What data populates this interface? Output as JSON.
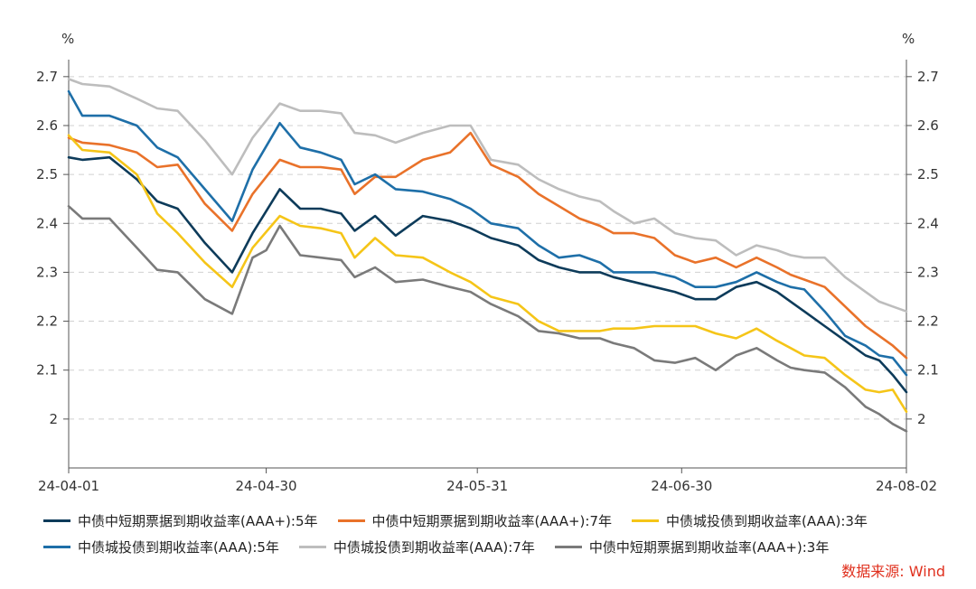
{
  "chart_data": {
    "type": "line",
    "y_unit_left": "%",
    "y_unit_right": "%",
    "ylim": [
      1.9,
      2.72
    ],
    "yticks": [
      2.7,
      2.6,
      2.5,
      2.4,
      2.3,
      2.2,
      2.1,
      2
    ],
    "ytick_labels": [
      "2.7",
      "2.6",
      "2.5",
      "2.4",
      "2.3",
      "2.2",
      "2.1",
      "2"
    ],
    "x_range": [
      0,
      123
    ],
    "xticks": [
      0,
      29,
      60,
      90,
      123
    ],
    "xtick_labels": [
      "24-04-01",
      "24-04-30",
      "24-05-31",
      "24-06-30",
      "24-08-02"
    ],
    "grid": true,
    "legend_position": "bottom",
    "series": [
      {
        "name": "中债中短期票据到期收益率(AAA+):5年",
        "color": "#0d3b5a",
        "x": [
          0,
          2,
          6,
          10,
          13,
          16,
          20,
          24,
          27,
          31,
          34,
          37,
          40,
          42,
          45,
          48,
          52,
          56,
          59,
          62,
          66,
          69,
          72,
          75,
          78,
          80,
          83,
          86,
          89,
          92,
          95,
          98,
          101,
          104,
          106,
          108,
          111,
          114,
          117,
          119,
          121,
          123
        ],
        "y": [
          2.535,
          2.53,
          2.535,
          2.49,
          2.445,
          2.43,
          2.36,
          2.3,
          2.38,
          2.47,
          2.43,
          2.43,
          2.42,
          2.385,
          2.415,
          2.375,
          2.415,
          2.405,
          2.39,
          2.37,
          2.355,
          2.325,
          2.31,
          2.3,
          2.3,
          2.29,
          2.28,
          2.27,
          2.26,
          2.245,
          2.245,
          2.27,
          2.28,
          2.26,
          2.24,
          2.22,
          2.19,
          2.16,
          2.13,
          2.12,
          2.09,
          2.055
        ]
      },
      {
        "name": "中债中短期票据到期收益率(AAA+):7年",
        "color": "#e9722a",
        "x": [
          0,
          2,
          6,
          10,
          13,
          16,
          20,
          24,
          27,
          31,
          34,
          37,
          40,
          42,
          45,
          48,
          52,
          56,
          59,
          62,
          66,
          69,
          72,
          75,
          78,
          80,
          83,
          86,
          89,
          92,
          95,
          98,
          101,
          104,
          106,
          108,
          111,
          114,
          117,
          119,
          121,
          123
        ],
        "y": [
          2.575,
          2.565,
          2.56,
          2.545,
          2.515,
          2.52,
          2.44,
          2.385,
          2.46,
          2.53,
          2.515,
          2.515,
          2.51,
          2.46,
          2.495,
          2.495,
          2.53,
          2.545,
          2.585,
          2.52,
          2.495,
          2.46,
          2.435,
          2.41,
          2.395,
          2.38,
          2.38,
          2.37,
          2.335,
          2.32,
          2.33,
          2.31,
          2.33,
          2.31,
          2.295,
          2.285,
          2.27,
          2.23,
          2.19,
          2.17,
          2.15,
          2.125
        ]
      },
      {
        "name": "中债城投债到期收益率(AAA):3年",
        "color": "#f5c518",
        "x": [
          0,
          2,
          6,
          10,
          13,
          16,
          20,
          24,
          27,
          31,
          34,
          37,
          40,
          42,
          45,
          48,
          52,
          56,
          59,
          62,
          66,
          69,
          72,
          75,
          78,
          80,
          83,
          86,
          89,
          92,
          95,
          98,
          101,
          104,
          106,
          108,
          111,
          114,
          117,
          119,
          121,
          123
        ],
        "y": [
          2.58,
          2.55,
          2.545,
          2.5,
          2.42,
          2.38,
          2.32,
          2.27,
          2.35,
          2.415,
          2.395,
          2.39,
          2.38,
          2.33,
          2.37,
          2.335,
          2.33,
          2.3,
          2.28,
          2.25,
          2.235,
          2.2,
          2.18,
          2.18,
          2.18,
          2.185,
          2.185,
          2.19,
          2.19,
          2.19,
          2.175,
          2.165,
          2.185,
          2.16,
          2.145,
          2.13,
          2.125,
          2.09,
          2.06,
          2.055,
          2.06,
          2.015
        ]
      },
      {
        "name": "中债城投债到期收益率(AAA):5年",
        "color": "#1e6fa8",
        "x": [
          0,
          2,
          6,
          10,
          13,
          16,
          20,
          24,
          27,
          31,
          34,
          37,
          40,
          42,
          45,
          48,
          52,
          56,
          59,
          62,
          66,
          69,
          72,
          75,
          78,
          80,
          83,
          86,
          89,
          92,
          95,
          98,
          101,
          104,
          106,
          108,
          111,
          114,
          117,
          119,
          121,
          123
        ],
        "y": [
          2.67,
          2.62,
          2.62,
          2.6,
          2.555,
          2.535,
          2.47,
          2.405,
          2.51,
          2.605,
          2.555,
          2.545,
          2.53,
          2.48,
          2.5,
          2.47,
          2.465,
          2.45,
          2.43,
          2.4,
          2.39,
          2.355,
          2.33,
          2.335,
          2.32,
          2.3,
          2.3,
          2.3,
          2.29,
          2.27,
          2.27,
          2.28,
          2.3,
          2.28,
          2.27,
          2.265,
          2.22,
          2.17,
          2.15,
          2.13,
          2.125,
          2.09
        ]
      },
      {
        "name": "中债城投债到期收益率(AAA):7年",
        "color": "#bdbdbd",
        "x": [
          0,
          2,
          6,
          10,
          13,
          16,
          20,
          24,
          27,
          31,
          34,
          37,
          40,
          42,
          45,
          48,
          52,
          56,
          59,
          62,
          66,
          69,
          72,
          75,
          78,
          80,
          83,
          86,
          89,
          92,
          95,
          98,
          101,
          104,
          106,
          108,
          111,
          114,
          117,
          119,
          121,
          123
        ],
        "y": [
          2.695,
          2.685,
          2.68,
          2.655,
          2.635,
          2.63,
          2.57,
          2.5,
          2.575,
          2.645,
          2.63,
          2.63,
          2.625,
          2.585,
          2.58,
          2.565,
          2.585,
          2.6,
          2.6,
          2.53,
          2.52,
          2.49,
          2.47,
          2.455,
          2.445,
          2.425,
          2.4,
          2.41,
          2.38,
          2.37,
          2.365,
          2.335,
          2.355,
          2.345,
          2.335,
          2.33,
          2.33,
          2.29,
          2.26,
          2.24,
          2.23,
          2.22
        ]
      },
      {
        "name": "中债中短期票据到期收益率(AAA+):3年",
        "color": "#7a7a7a",
        "x": [
          0,
          2,
          6,
          10,
          13,
          16,
          20,
          24,
          27,
          29,
          31,
          34,
          37,
          40,
          42,
          45,
          48,
          52,
          56,
          59,
          62,
          66,
          69,
          72,
          75,
          78,
          80,
          83,
          86,
          89,
          92,
          95,
          98,
          101,
          104,
          106,
          108,
          111,
          114,
          117,
          119,
          121,
          123
        ],
        "y": [
          2.435,
          2.41,
          2.41,
          2.35,
          2.305,
          2.3,
          2.245,
          2.215,
          2.33,
          2.345,
          2.395,
          2.335,
          2.33,
          2.325,
          2.29,
          2.31,
          2.28,
          2.285,
          2.27,
          2.26,
          2.235,
          2.21,
          2.18,
          2.175,
          2.165,
          2.165,
          2.155,
          2.145,
          2.12,
          2.115,
          2.125,
          2.1,
          2.13,
          2.145,
          2.12,
          2.105,
          2.1,
          2.095,
          2.065,
          2.025,
          2.01,
          1.99,
          1.975
        ]
      }
    ]
  },
  "source_label": "数据来源: Wind"
}
